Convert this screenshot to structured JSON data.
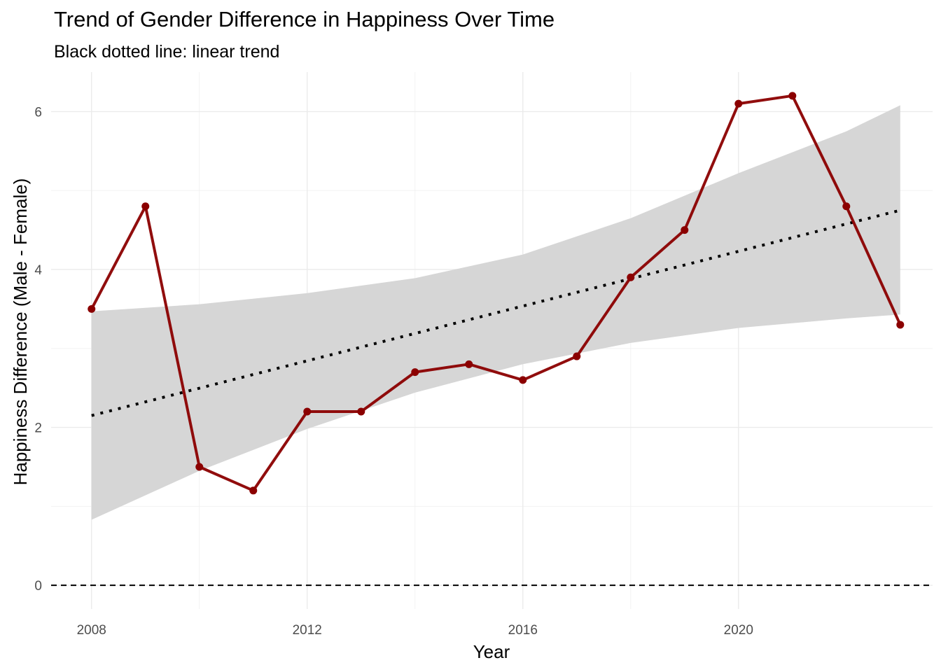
{
  "chart_data": {
    "type": "line",
    "title": "Trend of Gender Difference in Happiness Over Time",
    "subtitle": "Black dotted line: linear trend",
    "xlabel": "Year",
    "ylabel": "Happiness Difference (Male - Female)",
    "x_ticks": [
      2008,
      2012,
      2016,
      2020
    ],
    "y_ticks": [
      0,
      2,
      4,
      6
    ],
    "xlim": [
      2007.25,
      2023.6
    ],
    "ylim": [
      -0.3,
      6.5
    ],
    "grid": true,
    "legend": "none",
    "x": [
      2008,
      2009,
      2010,
      2011,
      2012,
      2013,
      2014,
      2015,
      2016,
      2017,
      2018,
      2019,
      2020,
      2021,
      2022,
      2023
    ],
    "series": [
      {
        "values": [
          3.5,
          4.8,
          1.5,
          1.2,
          2.2,
          2.2,
          2.7,
          2.8,
          2.6,
          2.9,
          3.9,
          4.5,
          6.1,
          6.2,
          4.8,
          3.3
        ],
        "color": "#8b0000"
      }
    ],
    "trend_line": {
      "style": "dotted",
      "color": "#000000",
      "start": [
        2008,
        2.15
      ],
      "end": [
        2023,
        4.75
      ]
    },
    "confidence_band": {
      "color": "#d6d6d6",
      "x": [
        2008,
        2010,
        2012,
        2014,
        2016,
        2018,
        2020,
        2022,
        2023
      ],
      "lower": [
        0.83,
        1.45,
        1.98,
        2.44,
        2.8,
        3.07,
        3.26,
        3.38,
        3.43
      ],
      "upper": [
        3.47,
        3.56,
        3.7,
        3.89,
        4.19,
        4.65,
        5.22,
        5.75,
        6.08
      ]
    },
    "reference_line": {
      "y": 0,
      "style": "dashed",
      "color": "#000000"
    }
  }
}
